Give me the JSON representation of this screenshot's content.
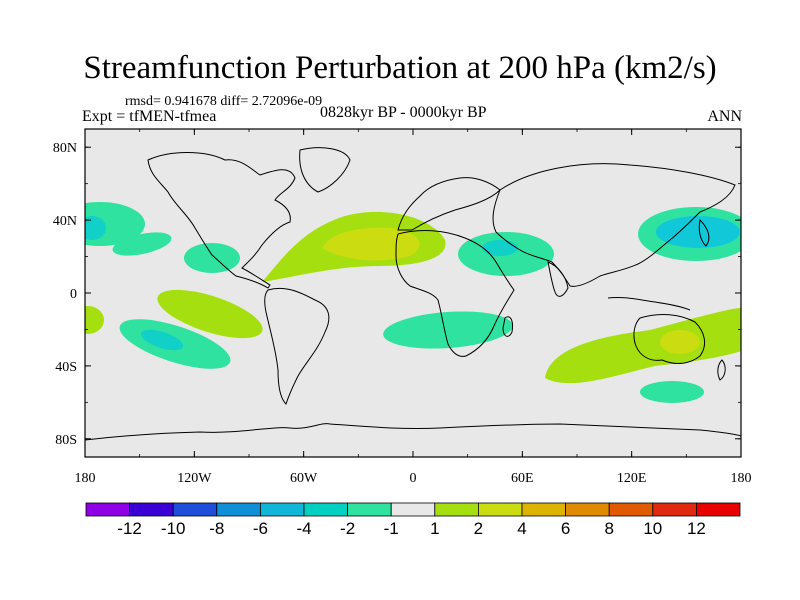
{
  "title": "Streamfunction Perturbation at 200 hPa (km2/s)",
  "stats": "rmsd= 0.941678 diff= 2.72096e-09",
  "expt": "Expt = tfMEN-tfmea",
  "period": "0828kyr BP - 0000kyr BP",
  "season": "ANN",
  "lat_ticks": [
    "80N",
    "40N",
    "0",
    "40S",
    "80S"
  ],
  "lat_values": [
    80,
    40,
    0,
    -40,
    -80
  ],
  "lon_ticks": [
    "180",
    "120W",
    "60W",
    "0",
    "60E",
    "120E",
    "180"
  ],
  "lon_values": [
    -180,
    -120,
    -60,
    0,
    60,
    120,
    180
  ],
  "colorbar": {
    "labels": [
      "-12",
      "-10",
      "-8",
      "-6",
      "-4",
      "-2",
      "-1",
      "1",
      "2",
      "4",
      "6",
      "8",
      "10",
      "12"
    ],
    "colors": [
      "#8f00e6",
      "#3b00d6",
      "#1f4fd8",
      "#0f8fd8",
      "#10b6d8",
      "#00d0c0",
      "#2fe2a0",
      "#e8e8e8",
      "#a6df10",
      "#cbdc10",
      "#dcb400",
      "#e08a00",
      "#e05a00",
      "#e02a10",
      "#e80000"
    ]
  },
  "chart_data": {
    "type": "map",
    "projection": "equirectangular",
    "lon_range": [
      -180,
      180
    ],
    "lat_range": [
      -90,
      90
    ],
    "features": [
      {
        "name": "N Pacific west low",
        "lon": -180,
        "lat": 38,
        "value": -2
      },
      {
        "name": "NE Pacific low band",
        "lon": -150,
        "lat": 28,
        "value": -1
      },
      {
        "name": "Mexico low",
        "lon": -115,
        "lat": 20,
        "value": -1
      },
      {
        "name": "N Atlantic/Sahara high",
        "lon": -15,
        "lat": 33,
        "value": 2
      },
      {
        "name": "N Atlantic/Sahara high core",
        "lon": -15,
        "lat": 30,
        "value": 4
      },
      {
        "name": "Middle East low",
        "lon": 45,
        "lat": 25,
        "value": -1
      },
      {
        "name": "Middle East low core",
        "lon": 45,
        "lat": 25,
        "value": -2
      },
      {
        "name": "NW Pacific low",
        "lon": 150,
        "lat": 38,
        "value": -2
      },
      {
        "name": "NW Pacific low core",
        "lon": 150,
        "lat": 38,
        "value": -4
      },
      {
        "name": "Central Pacific high",
        "lon": -130,
        "lat": -5,
        "value": 1
      },
      {
        "name": "S Pacific low",
        "lon": -140,
        "lat": -28,
        "value": -1
      },
      {
        "name": "S Pacific low core",
        "lon": -140,
        "lat": -30,
        "value": -2
      },
      {
        "name": "S Atlantic low",
        "lon": 30,
        "lat": -20,
        "value": -1
      },
      {
        "name": "Australia high",
        "lon": 130,
        "lat": -25,
        "value": 1
      },
      {
        "name": "Australia high core",
        "lon": 150,
        "lat": -25,
        "value": 4
      },
      {
        "name": "S Indian low",
        "lon": 155,
        "lat": -55,
        "value": -1
      },
      {
        "name": "E Pacific equator high",
        "lon": -178,
        "lat": -15,
        "value": 1
      }
    ],
    "colorbar_levels": [
      -12,
      -10,
      -8,
      -6,
      -4,
      -2,
      -1,
      1,
      2,
      4,
      6,
      8,
      10,
      12
    ]
  }
}
